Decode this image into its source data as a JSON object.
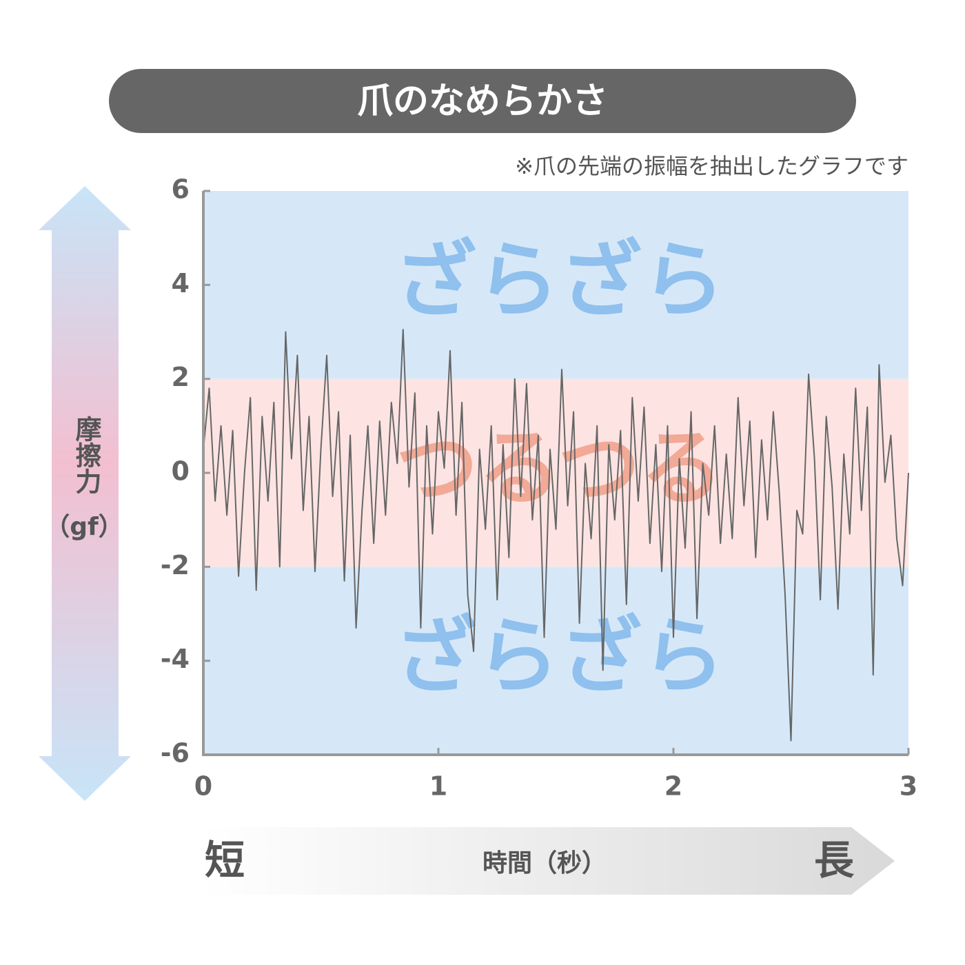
{
  "chart_data": {
    "type": "line",
    "title": "爪のなめらかさ",
    "note": "※爪の先端の振幅を抽出したグラフです",
    "y_label": "摩擦力",
    "y_unit": "（gf）",
    "x_label": "時間（秒）",
    "x_start_label": "短",
    "x_end_label": "長",
    "color": "#666666",
    "xlim": [
      0,
      3
    ],
    "xticks": [
      0,
      1,
      2,
      3
    ],
    "ylim": [
      -6,
      6
    ],
    "yticks": [
      -6,
      -4,
      -2,
      0,
      2,
      4,
      6
    ],
    "zones": [
      {
        "label": "ざらざら",
        "from": 2,
        "to": 6,
        "color": "#d6e8f8",
        "text_color": "#8fc0ee"
      },
      {
        "label": "つるつる",
        "from": -2,
        "to": 2,
        "color": "#fde4e2",
        "text_color": "#f2a996"
      },
      {
        "label": "ざらざら",
        "from": -6,
        "to": -2,
        "color": "#d6e8f8",
        "text_color": "#8fc0ee"
      }
    ],
    "x": [
      0,
      0.025,
      0.05,
      0.075,
      0.1,
      0.125,
      0.15,
      0.175,
      0.2,
      0.225,
      0.25,
      0.275,
      0.3,
      0.325,
      0.35,
      0.375,
      0.4,
      0.425,
      0.45,
      0.475,
      0.5,
      0.525,
      0.55,
      0.575,
      0.6,
      0.625,
      0.65,
      0.675,
      0.7,
      0.725,
      0.75,
      0.775,
      0.8,
      0.825,
      0.85,
      0.875,
      0.9,
      0.925,
      0.95,
      0.975,
      1,
      1.025,
      1.05,
      1.075,
      1.1,
      1.125,
      1.15,
      1.175,
      1.2,
      1.225,
      1.25,
      1.275,
      1.3,
      1.325,
      1.35,
      1.375,
      1.4,
      1.425,
      1.45,
      1.475,
      1.5,
      1.525,
      1.55,
      1.575,
      1.6,
      1.625,
      1.65,
      1.675,
      1.7,
      1.725,
      1.75,
      1.775,
      1.8,
      1.825,
      1.85,
      1.875,
      1.9,
      1.925,
      1.95,
      1.975,
      2,
      2.025,
      2.05,
      2.075,
      2.1,
      2.125,
      2.15,
      2.175,
      2.2,
      2.225,
      2.25,
      2.275,
      2.3,
      2.325,
      2.35,
      2.375,
      2.4,
      2.425,
      2.45,
      2.475,
      2.5,
      2.525,
      2.55,
      2.575,
      2.6,
      2.625,
      2.65,
      2.675,
      2.7,
      2.725,
      2.75,
      2.775,
      2.8,
      2.825,
      2.85,
      2.875,
      2.9,
      2.925,
      2.95,
      2.975,
      3
    ],
    "values": [
      0.5,
      1.8,
      -0.6,
      1.0,
      -0.9,
      0.9,
      -2.2,
      0.0,
      1.6,
      -2.5,
      1.2,
      -0.6,
      1.5,
      -2.0,
      3.0,
      0.3,
      2.5,
      -0.8,
      1.2,
      -2.1,
      0.5,
      2.5,
      -0.5,
      1.3,
      -2.3,
      0.8,
      -3.3,
      -0.8,
      1.0,
      -1.5,
      1.1,
      -0.9,
      1.5,
      0.2,
      3.05,
      -0.3,
      1.7,
      -3.3,
      1.0,
      -1.3,
      1.3,
      0.1,
      2.6,
      -0.9,
      1.5,
      -2.6,
      -3.8,
      0.5,
      -1.2,
      1.0,
      -2.7,
      0.6,
      -1.8,
      2.0,
      -0.5,
      1.9,
      -1.0,
      0.8,
      -3.5,
      0.5,
      -1.2,
      2.2,
      -0.7,
      1.3,
      -3.2,
      0.2,
      -1.4,
      1.0,
      -4.2,
      0.6,
      -1.0,
      0.9,
      -2.8,
      1.6,
      -0.6,
      1.4,
      -1.5,
      0.6,
      -2.1,
      1.0,
      -3.5,
      0.3,
      -1.6,
      1.3,
      -3.1,
      0.2,
      -0.9,
      1.0,
      -1.5,
      0.4,
      -1.4,
      1.6,
      -0.7,
      1.1,
      -1.8,
      0.7,
      -1.0,
      1.3,
      -0.4,
      -2.6,
      -5.7,
      -0.8,
      -1.3,
      2.1,
      0.3,
      -2.7,
      1.2,
      -0.3,
      -2.9,
      0.4,
      -1.3,
      1.8,
      -0.8,
      1.4,
      -4.3,
      2.3,
      -0.2,
      0.8,
      -1.4,
      -2.4,
      0.0
    ]
  }
}
